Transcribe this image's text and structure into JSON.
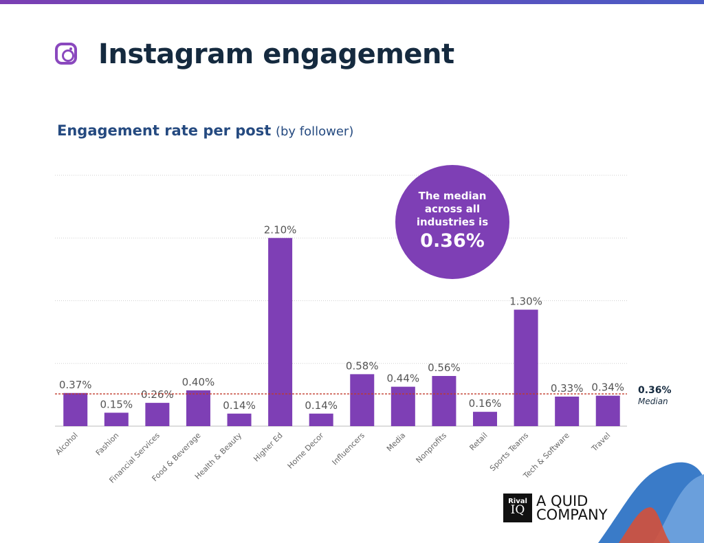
{
  "header": {
    "title": "Instagram engagement",
    "icon": "instagram-icon"
  },
  "chart_data": {
    "type": "bar",
    "title": "Engagement rate per post",
    "title_suffix": "(by follower)",
    "categories": [
      "Alcohol",
      "Fashion",
      "Financial Services",
      "Food & Beverage",
      "Health & Beauty",
      "Higher Ed",
      "Home Decor",
      "Influencers",
      "Media",
      "Nonprofits",
      "Retail",
      "Sports Teams",
      "Tech & Software",
      "Travel"
    ],
    "values": [
      0.37,
      0.15,
      0.26,
      0.4,
      0.14,
      2.1,
      0.14,
      0.58,
      0.44,
      0.56,
      0.16,
      1.3,
      0.33,
      0.34
    ],
    "labels": [
      "0.37%",
      "0.15%",
      "0.26%",
      "0.40%",
      "0.14%",
      "2.10%",
      "0.14%",
      "0.58%",
      "0.44%",
      "0.56%",
      "0.16%",
      "1.30%",
      "0.33%",
      "0.34%"
    ],
    "ylim": [
      0,
      2.8
    ],
    "grid": true,
    "gridlines": [
      0.7,
      1.4,
      2.1,
      2.8
    ],
    "bar_color": "#7e3fb5",
    "median": {
      "value": 0.36,
      "label": "0.36%",
      "caption": "Median",
      "color": "#c0392b"
    },
    "callout": {
      "text": "The median across all industries is",
      "value": "0.36%"
    }
  },
  "footer": {
    "brand_box_top": "Rival",
    "brand_box_bottom": "IQ",
    "brand_line1": "A QUID",
    "brand_line2": "COMPANY"
  }
}
